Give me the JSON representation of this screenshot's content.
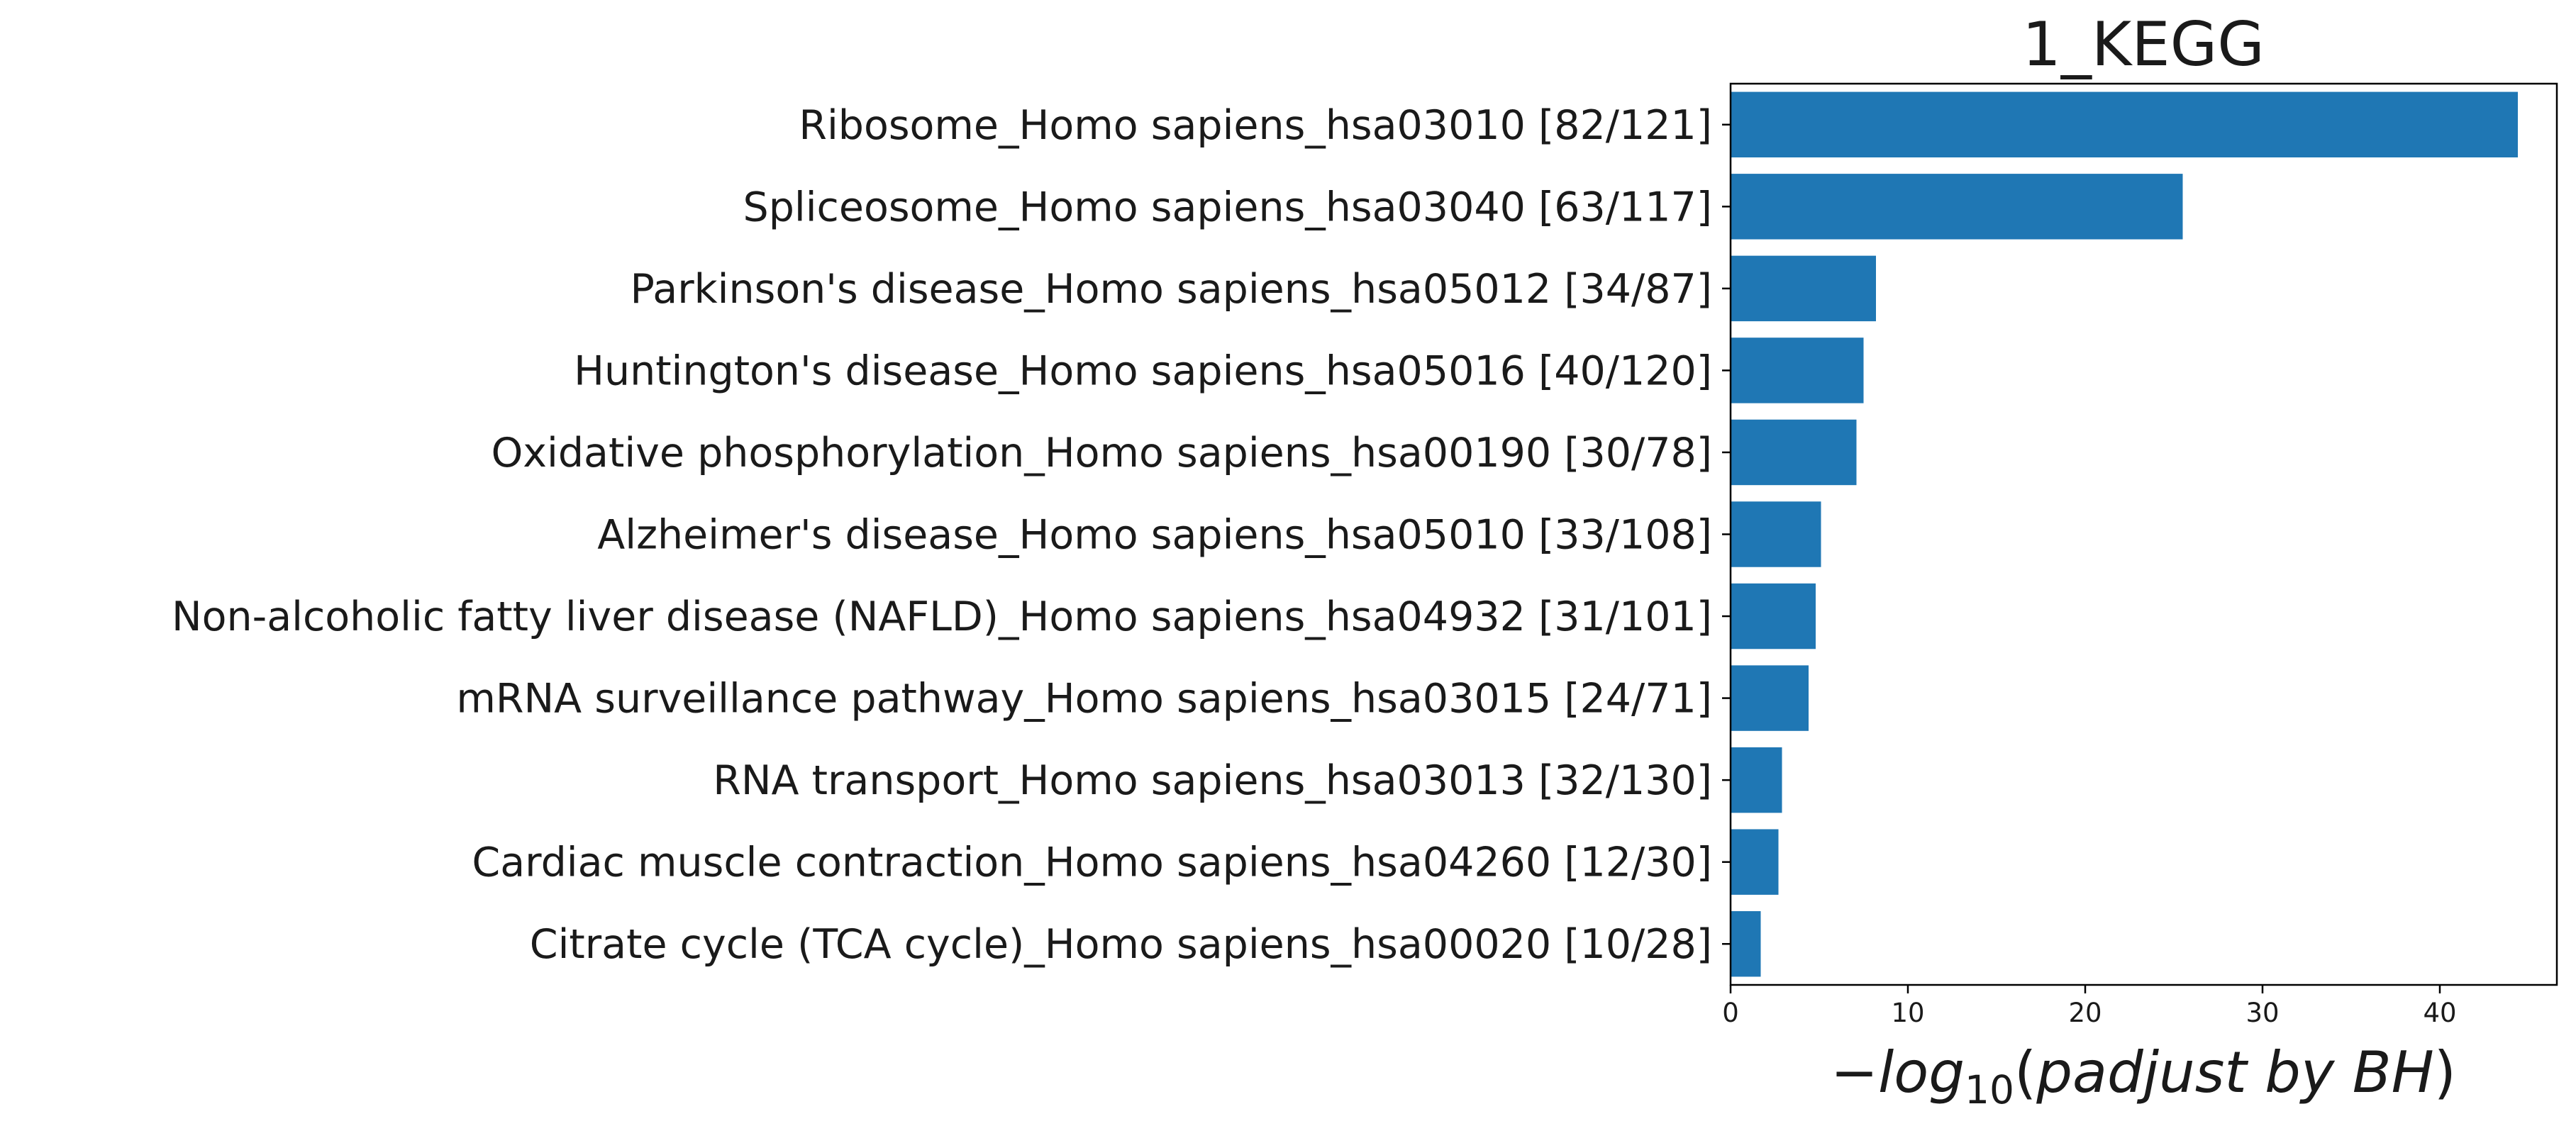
{
  "chart_data": {
    "type": "bar",
    "orientation": "horizontal",
    "title": "1_KEGG",
    "xlabel": {
      "minus": "−",
      "func": "log",
      "base": "10",
      "open": "(",
      "text": "padjust by BH",
      "close": ")"
    },
    "ylabel": "",
    "xlim": [
      0,
      46.6
    ],
    "xticks": [
      0,
      10,
      20,
      30,
      40
    ],
    "bar_color": "#1f77b4",
    "grid": false,
    "categories": [
      "Ribosome_Homo sapiens_hsa03010 [82/121]",
      "Spliceosome_Homo sapiens_hsa03040 [63/117]",
      "Parkinson's disease_Homo sapiens_hsa05012 [34/87]",
      "Huntington's disease_Homo sapiens_hsa05016 [40/120]",
      "Oxidative phosphorylation_Homo sapiens_hsa00190 [30/78]",
      "Alzheimer's disease_Homo sapiens_hsa05010 [33/108]",
      "Non-alcoholic fatty liver disease (NAFLD)_Homo sapiens_hsa04932 [31/101]",
      "mRNA surveillance pathway_Homo sapiens_hsa03015 [24/71]",
      "RNA transport_Homo sapiens_hsa03013 [32/130]",
      "Cardiac muscle contraction_Homo sapiens_hsa04260 [12/30]",
      "Citrate cycle (TCA cycle)_Homo sapiens_hsa00020 [10/28]"
    ],
    "values": [
      44.4,
      25.5,
      8.2,
      7.5,
      7.1,
      5.1,
      4.8,
      4.4,
      2.9,
      2.7,
      1.7
    ]
  }
}
